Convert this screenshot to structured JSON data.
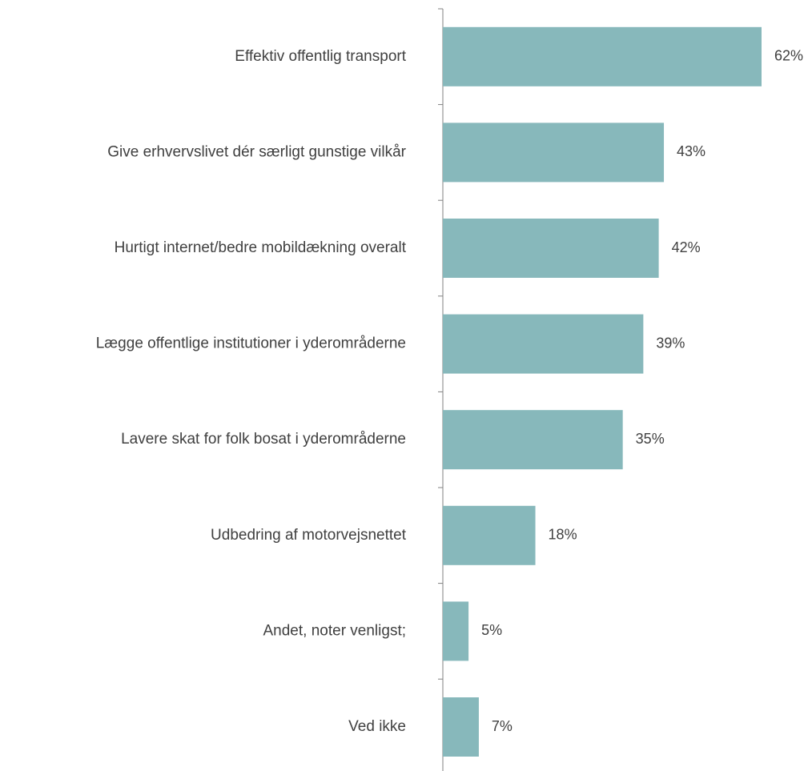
{
  "chart_data": {
    "type": "bar",
    "orientation": "horizontal",
    "categories": [
      "Effektiv offentlig transport",
      "Give erhvervslivet dér særligt gunstige vilkår",
      "Hurtigt internet/bedre mobildækning overalt",
      "Lægge offentlige institutioner i yderområderne",
      "Lavere skat for folk bosat i yderområderne",
      "Udbedring af motorvejsnettet",
      "Andet, noter venligst;",
      "Ved ikke"
    ],
    "values": [
      62,
      43,
      42,
      39,
      35,
      18,
      5,
      7
    ],
    "value_labels": [
      "62%",
      "43%",
      "42%",
      "39%",
      "35%",
      "18%",
      "5%",
      "7%"
    ],
    "xlim": [
      0,
      62
    ],
    "grid": false,
    "legend": "none",
    "bar_color": "#87b8bb",
    "axis_color": "#808080"
  }
}
